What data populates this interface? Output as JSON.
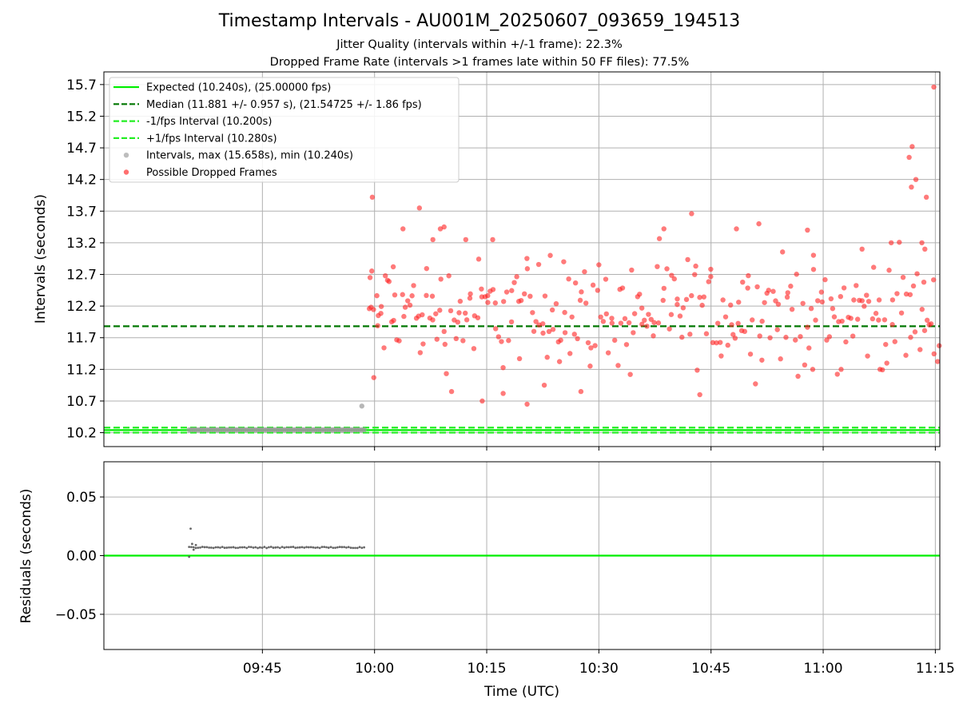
{
  "figure": {
    "title": "Timestamp Intervals - AU001M_20250607_093659_194513",
    "subtitle_1": "Jitter Quality (intervals within +/-1 frame): 22.3%",
    "subtitle_2": "Dropped Frame Rate (intervals >1 frames late within 50 FF files): 77.5%"
  },
  "colors": {
    "expected": "#00ee00",
    "median": "#007700",
    "bounds": "#22ee22",
    "normal_points": "#999999",
    "dropped_points": "#ff2222",
    "residual_points": "#666666",
    "grid": "#b0b0b0"
  },
  "chart_data": [
    {
      "type": "scatter",
      "name": "intervals-panel",
      "ylabel": "Intervals (seconds)",
      "xlabel": "",
      "x_unit": "minutes after 09:30 UTC",
      "xlim": [
        -6.2,
        105.6
      ],
      "ylim": [
        9.98,
        15.9
      ],
      "yticks": [
        "10.2",
        "10.7",
        "11.2",
        "11.7",
        "12.2",
        "12.7",
        "13.2",
        "13.7",
        "14.2",
        "14.7",
        "15.2",
        "15.7"
      ],
      "grid": true,
      "legend_position": "top-left",
      "lines": [
        {
          "label": "Expected (10.240s), (25.00000 fps)",
          "y": 10.24,
          "style": "solid",
          "color_key": "expected"
        },
        {
          "label": "Median (11.881 +/- 0.957 s), (21.54725 +/- 1.86 fps)",
          "y": 11.881,
          "style": "dashed",
          "color_key": "median"
        },
        {
          "label": "-1/fps Interval (10.200s)",
          "y": 10.2,
          "style": "dashed",
          "color_key": "bounds"
        },
        {
          "label": "+1/fps Interval (10.280s)",
          "y": 10.28,
          "style": "dashed",
          "color_key": "bounds"
        }
      ],
      "series": [
        {
          "name": "Intervals, max (15.658s), min (10.240s)",
          "kind": "normal",
          "x_range": [
            5.2,
            28.6
          ],
          "count": 80,
          "y": 10.245,
          "extra": [
            [
              28.3,
              10.62
            ]
          ]
        },
        {
          "name": "Possible Dropped Frames",
          "kind": "dropped",
          "x_range": [
            29.0,
            105.6
          ],
          "count": 330,
          "y_points": [
            [
              29.7,
              13.92
            ],
            [
              29.4,
              12.65
            ],
            [
              29.9,
              11.07
            ],
            [
              30.5,
              12.05
            ],
            [
              32.5,
              12.82
            ],
            [
              36.0,
              13.75
            ],
            [
              33.8,
              13.42
            ],
            [
              37.8,
              13.25
            ],
            [
              38.8,
              13.42
            ],
            [
              39.3,
              13.45
            ],
            [
              42.2,
              13.25
            ],
            [
              45.8,
              13.25
            ],
            [
              53.5,
              13.0
            ],
            [
              55.3,
              12.9
            ],
            [
              68.7,
              13.42
            ],
            [
              72.4,
              13.66
            ],
            [
              78.4,
              13.42
            ],
            [
              81.4,
              13.5
            ],
            [
              87.9,
              13.4
            ],
            [
              95.2,
              13.1
            ],
            [
              99.1,
              13.2
            ],
            [
              104.8,
              15.66
            ],
            [
              101.5,
              14.55
            ],
            [
              101.9,
              14.72
            ],
            [
              101.8,
              14.08
            ],
            [
              102.4,
              14.2
            ],
            [
              103.2,
              13.2
            ],
            [
              103.6,
              13.1
            ],
            [
              103.8,
              13.92
            ],
            [
              40.3,
              10.85
            ],
            [
              44.4,
              10.7
            ],
            [
              47.2,
              10.82
            ],
            [
              50.4,
              10.65
            ],
            [
              52.7,
              10.95
            ],
            [
              57.6,
              10.85
            ],
            [
              64.2,
              11.12
            ],
            [
              73.5,
              10.8
            ],
            [
              88.6,
              11.2
            ],
            [
              92.4,
              11.2
            ],
            [
              97.6,
              11.2
            ]
          ],
          "y_range_bulk": [
            11.2,
            13.0
          ]
        }
      ]
    },
    {
      "type": "scatter",
      "name": "residuals-panel",
      "xlabel": "Time (UTC)",
      "ylabel": "Residuals (seconds)",
      "xlim": [
        -6.2,
        105.6
      ],
      "ylim": [
        -0.08,
        0.08
      ],
      "yticks": [
        "−0.05",
        "0.00",
        "0.05"
      ],
      "yticks_values": [
        -0.05,
        0.0,
        0.05
      ],
      "xticks": [
        "09:45",
        "10:00",
        "10:15",
        "10:30",
        "10:45",
        "11:00",
        "11:15"
      ],
      "xticks_values": [
        15,
        30,
        45,
        60,
        75,
        90,
        105
      ],
      "grid": true,
      "zero_line": 0.0,
      "series": [
        {
          "name": "residuals",
          "x_range": [
            5.2,
            28.6
          ],
          "count": 80,
          "y": 0.007,
          "extra": [
            [
              5.4,
              0.023
            ],
            [
              5.2,
              -0.001
            ],
            [
              5.8,
              0.005
            ],
            [
              5.6,
              0.01
            ],
            [
              6.1,
              0.009
            ]
          ]
        }
      ]
    }
  ]
}
